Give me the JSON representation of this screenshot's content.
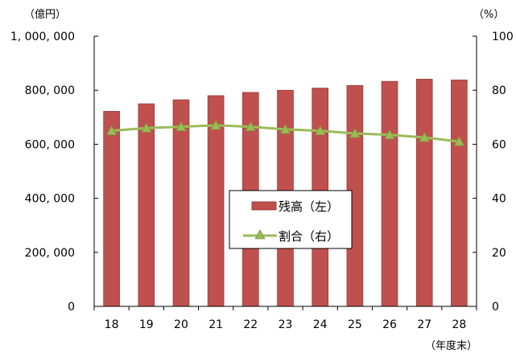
{
  "chart_data": {
    "type": "bar",
    "categories": [
      "18",
      "19",
      "20",
      "21",
      "22",
      "23",
      "24",
      "25",
      "26",
      "27",
      "28"
    ],
    "series": [
      {
        "name": "残高（左）",
        "type": "bar",
        "axis": "left",
        "color": "#c0504d",
        "values": [
          722000,
          750000,
          765000,
          780000,
          792000,
          800000,
          808000,
          818000,
          833000,
          841000,
          838000
        ]
      },
      {
        "name": "割合（右）",
        "type": "line",
        "axis": "right",
        "color": "#9bbb59",
        "marker": "triangle",
        "values": [
          65,
          66,
          66.5,
          67,
          66.5,
          65.5,
          65,
          64,
          63.5,
          62.5,
          61
        ]
      }
    ],
    "y_left": {
      "unit": "（億円）",
      "min": 0,
      "max": 1000000,
      "ticks": [
        0,
        200000,
        400000,
        600000,
        800000,
        1000000
      ],
      "tick_labels": [
        "0",
        "200, 000",
        "400, 000",
        "600, 000",
        "800, 000",
        "1, 000, 000"
      ]
    },
    "y_right": {
      "unit": "（%）",
      "min": 0,
      "max": 100,
      "ticks": [
        0,
        20,
        40,
        60,
        80,
        100
      ],
      "tick_labels": [
        "0",
        "20",
        "40",
        "60",
        "80",
        "100"
      ]
    },
    "x_unit": "（年度末）",
    "grid": false,
    "legend": "center"
  }
}
